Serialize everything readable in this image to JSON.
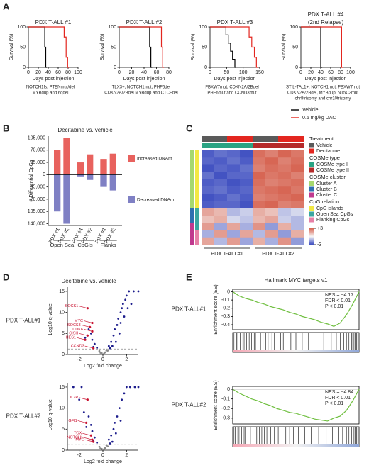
{
  "panel_labels": [
    "A",
    "B",
    "C",
    "D",
    "E"
  ],
  "chart_data": [
    {
      "type": "line",
      "title": "PDX T-ALL #1",
      "xlabel": "Days post injection",
      "ylabel": "Survival (%)",
      "xlim": [
        0,
        100
      ],
      "xticks": [
        0,
        20,
        40,
        60,
        80,
        100
      ],
      "ylim": [
        0,
        100
      ],
      "yticks": [
        0,
        50,
        100
      ],
      "series": [
        {
          "color": "#000000",
          "x": [
            0,
            33,
            33,
            35,
            35,
            37
          ],
          "y": [
            100,
            100,
            50,
            50,
            0,
            0
          ]
        },
        {
          "color": "#e3261f",
          "x": [
            0,
            72,
            72,
            76,
            76,
            79,
            79,
            82
          ],
          "y": [
            100,
            100,
            75,
            75,
            25,
            25,
            0,
            0
          ]
        }
      ],
      "annotation": [
        "NOTCH1fs, PTENmut/del",
        "MYBdup and 6qdel"
      ]
    },
    {
      "type": "line",
      "title": "PDX T-ALL #2",
      "xlabel": "Days post injection",
      "ylabel": "Survival (%)",
      "xlim": [
        0,
        80
      ],
      "xticks": [
        0,
        20,
        40,
        60,
        80
      ],
      "ylim": [
        0,
        100
      ],
      "yticks": [
        0,
        50,
        100
      ],
      "series": [
        {
          "color": "#000000",
          "x": [
            0,
            49,
            49,
            51,
            51,
            53
          ],
          "y": [
            100,
            100,
            50,
            50,
            0,
            0
          ]
        },
        {
          "color": "#e3261f",
          "x": [
            0,
            68,
            68,
            70,
            70,
            72
          ],
          "y": [
            100,
            100,
            50,
            50,
            0,
            0
          ]
        }
      ],
      "annotation": [
        "TLX3+, NOTCH1mut, PHF6del",
        "CDKN2A/2Bdel MYBdup and CTCFdel"
      ]
    },
    {
      "type": "line",
      "title": "PDX T-ALL #3",
      "xlabel": "Days post injection",
      "ylabel": "Survival (%)",
      "xlim": [
        0,
        150
      ],
      "xticks": [
        0,
        50,
        100,
        150
      ],
      "ylim": [
        0,
        100
      ],
      "yticks": [
        0,
        50,
        100
      ],
      "series": [
        {
          "color": "#000000",
          "x": [
            0,
            48,
            48,
            55,
            55,
            62,
            62,
            68,
            68,
            75,
            75,
            78
          ],
          "y": [
            100,
            100,
            80,
            80,
            60,
            60,
            40,
            40,
            20,
            20,
            0,
            0
          ]
        },
        {
          "color": "#e3261f",
          "x": [
            0,
            118,
            118,
            126,
            126,
            134,
            134,
            140,
            140,
            145
          ],
          "y": [
            100,
            100,
            75,
            75,
            50,
            50,
            25,
            25,
            0,
            0
          ]
        }
      ],
      "annotation": [
        "FBXW7mut, CDKN2A/2Bdel",
        "PHF6mut and CCND3mut"
      ]
    },
    {
      "type": "line",
      "title": "PDX T-ALL #4",
      "subtitle": "(2nd Relapse)",
      "xlabel": "Days post injection",
      "ylabel": "Survival (%)",
      "xlim": [
        0,
        100
      ],
      "xticks": [
        0,
        20,
        40,
        60,
        80,
        100
      ],
      "ylim": [
        0,
        100
      ],
      "yticks": [
        0,
        50,
        100
      ],
      "series": [
        {
          "name": "Vehicle",
          "color": "#000000",
          "x": [
            0,
            40,
            40,
            43
          ],
          "y": [
            100,
            100,
            0,
            0
          ]
        },
        {
          "name": "0.5 mg/kg DAC",
          "color": "#e3261f",
          "x": [
            0,
            82,
            82,
            85
          ],
          "y": [
            100,
            100,
            0,
            0
          ]
        }
      ],
      "annotation": [
        "STIL-TAL1+, NOTCH1mut, FBXW7mut",
        "CDKN2A/2Bdel, MYBdup, NT5C2mut",
        "chr8trisomy and chr10trisomy"
      ],
      "legend": "lower right"
    },
    {
      "type": "bar",
      "title": "Decitabine vs. vehicle",
      "ylabel": "# Differential CpGs",
      "categories": [
        "PDX #1",
        "PDX #2",
        "PDX #1",
        "PDX #2",
        "PDX #1",
        "PDX #2"
      ],
      "groups": [
        "Open Sea",
        "CpGIs",
        "Flanks"
      ],
      "series": [
        {
          "name": "Increased DNAm",
          "color": "#e8625e",
          "values": [
            70000,
            105000,
            35000,
            58000,
            45000,
            60000
          ]
        },
        {
          "name": "Decreased DNAm",
          "color": "#7f80c4",
          "values": [
            -105000,
            -140000,
            -5000,
            -15000,
            -35000,
            -45000
          ]
        }
      ],
      "ylim": [
        -145000,
        110000
      ],
      "yticks": [
        {
          "value": 105000,
          "label": "105,000"
        },
        {
          "value": 70000,
          "label": "70,000"
        },
        {
          "value": 35000,
          "label": "35,000"
        },
        0,
        {
          "value": -35000,
          "label": "35,000"
        },
        {
          "value": -70000,
          "label": "70,000"
        },
        {
          "value": -105000,
          "label": "105,000"
        },
        {
          "value": -140000,
          "label": "140,000"
        }
      ]
    },
    {
      "type": "heatmap",
      "xlabels": [
        "PDX T-ALL#1",
        "PDX T-ALL#2"
      ],
      "zlim": [
        -3,
        3
      ],
      "zticks": [
        {
          "value": 3,
          "label": "+3"
        },
        -3
      ],
      "col_annotations": [
        {
          "title": "Treatment",
          "items": [
            {
              "name": "Vehicle",
              "color": "#5a5a5a"
            },
            {
              "name": "Decitabine",
              "color": "#e3261f"
            }
          ],
          "values": [
            0,
            0,
            1,
            1,
            0,
            0,
            1,
            1
          ]
        },
        {
          "title": "COSMe type",
          "items": [
            {
              "name": "COSMe type I",
              "color": "#2aa383"
            },
            {
              "name": "COSMe type II",
              "color": "#b52a2a"
            }
          ],
          "values": [
            0,
            0,
            0,
            0,
            1,
            1,
            1,
            1
          ]
        }
      ],
      "row_annotations": [
        {
          "title": "COSMe cluster",
          "items": [
            {
              "name": "Cluster A",
              "color": "#a6d86e"
            },
            {
              "name": "Cluster B",
              "color": "#2f6fb0"
            },
            {
              "name": "Cluster C",
              "color": "#c0398e"
            }
          ],
          "values": [
            0,
            0,
            0,
            0,
            0,
            0,
            0,
            0,
            1,
            1,
            2,
            2,
            2
          ]
        },
        {
          "title": "CpG relation",
          "items": [
            {
              "name": "CpG islands",
              "color": "#f2e842"
            },
            {
              "name": "Open Sea CpGs",
              "color": "#3aa6a0"
            },
            {
              "name": "Flanking CpGs",
              "color": "#e67fa6"
            }
          ],
          "values": [
            0,
            0,
            0,
            0,
            0,
            0,
            0,
            0,
            1,
            1,
            1,
            2,
            2
          ]
        }
      ],
      "matrix": [
        [
          -1.5,
          -1.3,
          -1.4,
          -1.6,
          1.5,
          1.3,
          1.6,
          1.4
        ],
        [
          -1.4,
          -1.5,
          -1.3,
          -1.5,
          1.4,
          1.6,
          1.3,
          1.5
        ],
        [
          -1.6,
          -1.4,
          -1.5,
          -1.3,
          1.3,
          1.5,
          1.4,
          1.6
        ],
        [
          -1.3,
          -1.6,
          -1.4,
          -1.4,
          1.6,
          1.4,
          1.5,
          1.3
        ],
        [
          -1.5,
          -1.4,
          -1.6,
          -1.5,
          1.5,
          1.3,
          1.4,
          1.5
        ],
        [
          -1.4,
          -1.3,
          -1.5,
          -1.4,
          1.4,
          1.5,
          1.6,
          1.4
        ],
        [
          -1.6,
          -1.5,
          -1.3,
          -1.5,
          1.3,
          1.4,
          1.5,
          1.6
        ],
        [
          -1.5,
          -1.4,
          -1.4,
          -1.6,
          1.5,
          1.6,
          1.3,
          1.4
        ],
        [
          0.9,
          0.7,
          -0.6,
          -0.4,
          0.8,
          0.6,
          -0.5,
          -0.3
        ],
        [
          0.6,
          0.8,
          -0.3,
          -0.5,
          0.7,
          0.9,
          -0.4,
          -0.6
        ],
        [
          1.0,
          -0.8,
          0.9,
          -0.7,
          1.1,
          -0.9,
          0.8,
          -0.6
        ],
        [
          -0.7,
          1.0,
          -0.8,
          0.9,
          -0.6,
          1.0,
          -0.9,
          0.8
        ],
        [
          0.9,
          -0.6,
          1.0,
          -0.8,
          0.8,
          -0.7,
          1.1,
          -0.9
        ]
      ]
    },
    {
      "type": "scatter",
      "title": "Decitabine vs. vehicle",
      "row_label": "PDX T-ALL#1",
      "xlabel": "Log2 fold change",
      "ylabel": "−Log10 q-value",
      "xlim": [
        -3,
        3
      ],
      "xticks": [
        -2,
        0,
        2
      ],
      "ylim": [
        0,
        16
      ],
      "yticks": [
        0,
        5,
        10,
        15
      ],
      "hline": 1.3,
      "color": "#1c1c8c",
      "x": [
        0.3,
        0.5,
        0.7,
        0.9,
        1.0,
        1.2,
        1.3,
        1.5,
        1.6,
        1.7,
        1.9,
        2.0,
        2.2,
        2.6,
        3.0,
        1.1,
        1.4,
        0.8,
        1.8,
        2.1,
        0.6,
        0.2,
        -0.2,
        0.1,
        -0.1,
        -0.5,
        -0.7,
        -0.9,
        -1.0,
        -1.2,
        -0.8,
        -1.5,
        2.4,
        1.5,
        -0.3,
        0.4
      ],
      "y": [
        1.0,
        2.0,
        3.0,
        4.5,
        6.0,
        7.0,
        8.5,
        10.0,
        11.0,
        12.0,
        13.0,
        14.0,
        15.0,
        15.0,
        15.0,
        3.0,
        5.0,
        2.0,
        9.0,
        11.0,
        1.5,
        0.5,
        0.4,
        0.2,
        0.3,
        1.6,
        2.5,
        3.5,
        5.0,
        6.0,
        1.8,
        4.0,
        12.0,
        7.5,
        0.8,
        0.9
      ],
      "highlights": {
        "names": [
          "SOCS1",
          "MYC",
          "SOCS3",
          "CDK6",
          "CISH",
          "HES1",
          "CCND3"
        ],
        "x": [
          -1.3,
          -0.9,
          -1.1,
          -0.9,
          -1.3,
          -1.5,
          -0.8
        ],
        "y": [
          11.0,
          7.5,
          6.5,
          5.5,
          4.5,
          3.5,
          1.5
        ]
      }
    },
    {
      "type": "scatter",
      "row_label": "PDX T-ALL#2",
      "xlabel": "Log2 fold change",
      "ylabel": "−Log10 q-value",
      "xlim": [
        -3,
        3
      ],
      "xticks": [
        -2,
        0,
        2
      ],
      "ylim": [
        0,
        16
      ],
      "yticks": [
        0,
        5,
        10,
        15
      ],
      "hline": 1.3,
      "color": "#1c1c8c",
      "x": [
        0.3,
        0.5,
        0.7,
        0.9,
        1.0,
        1.2,
        1.4,
        1.6,
        1.8,
        2.0,
        2.3,
        2.7,
        3.0,
        1.1,
        0.8,
        0.6,
        0.2,
        -0.2,
        0.1,
        -0.1,
        -0.5,
        -0.7,
        -0.9,
        -1.0,
        -1.2,
        -1.6,
        -2.0,
        -1.8,
        -2.5,
        -0.8,
        -1.4,
        1.5,
        -0.3,
        0.4
      ],
      "y": [
        1.2,
        2.5,
        3.5,
        5.0,
        6.5,
        8.0,
        10.0,
        12.0,
        13.5,
        15.0,
        15.0,
        15.0,
        15.0,
        4.0,
        2.0,
        1.6,
        0.5,
        0.4,
        0.2,
        0.3,
        1.8,
        3.0,
        4.5,
        6.0,
        8.0,
        9.0,
        12.0,
        15.0,
        15.0,
        2.2,
        5.5,
        7.0,
        0.8,
        0.9
      ],
      "highlights": {
        "names": [
          "IL7R",
          "GFI1",
          "TOX",
          "NOTCH1",
          "MYC"
        ],
        "x": [
          -1.3,
          -1.4,
          -1.0,
          -0.9,
          -0.8
        ],
        "y": [
          12.0,
          6.5,
          3.5,
          2.5,
          2.0
        ]
      }
    },
    {
      "type": "line",
      "title": "Hallmark MYC targets v1",
      "row_label": "PDX T-ALL#1",
      "ylabel": "Enrichment score (ES)",
      "xlim": [
        0,
        100
      ],
      "ylim": [
        -0.46,
        0.03
      ],
      "yticks": [
        0,
        -0.1,
        -0.2,
        -0.3,
        -0.4
      ],
      "series": [
        {
          "color": "#6fbf3f",
          "x": [
            0,
            5,
            10,
            15,
            20,
            25,
            30,
            35,
            40,
            45,
            50,
            55,
            60,
            65,
            70,
            75,
            80,
            85,
            90,
            95,
            100
          ],
          "y": [
            0,
            -0.05,
            -0.08,
            -0.1,
            -0.13,
            -0.15,
            -0.18,
            -0.2,
            -0.22,
            -0.25,
            -0.27,
            -0.3,
            -0.32,
            -0.34,
            -0.37,
            -0.39,
            -0.42,
            -0.38,
            -0.28,
            -0.15,
            0
          ]
        }
      ],
      "annotation": [
        "NES = −4.17",
        "FDR < 0.01",
        "P < 0.01"
      ],
      "hits": [
        1,
        3,
        4,
        6,
        8,
        9,
        11,
        13,
        15,
        17,
        18,
        20,
        22,
        24,
        26,
        28,
        31,
        33,
        35,
        38,
        40,
        43,
        46,
        50,
        55,
        60,
        66,
        72,
        78,
        82,
        85,
        88,
        90,
        92,
        94,
        95,
        96,
        97,
        98,
        99
      ]
    },
    {
      "type": "line",
      "row_label": "PDX T-ALL#2",
      "ylabel": "Enrichment score (ES)",
      "xlim": [
        0,
        100
      ],
      "ylim": [
        -0.36,
        0.03
      ],
      "yticks": [
        0,
        -0.1,
        -0.2,
        -0.3
      ],
      "series": [
        {
          "color": "#6fbf3f",
          "x": [
            0,
            5,
            10,
            15,
            20,
            25,
            30,
            35,
            40,
            45,
            50,
            55,
            60,
            65,
            70,
            75,
            80,
            85,
            90,
            95,
            100
          ],
          "y": [
            0,
            -0.04,
            -0.07,
            -0.1,
            -0.12,
            -0.15,
            -0.17,
            -0.2,
            -0.22,
            -0.24,
            -0.25,
            -0.27,
            -0.29,
            -0.31,
            -0.32,
            -0.33,
            -0.3,
            -0.28,
            -0.22,
            -0.12,
            0
          ]
        }
      ],
      "annotation": [
        "NES = −4.84",
        "FDR < 0.01",
        "P < 0.01"
      ],
      "hits": [
        1,
        2,
        4,
        5,
        7,
        9,
        10,
        12,
        14,
        16,
        19,
        21,
        23,
        25,
        27,
        30,
        33,
        36,
        39,
        42,
        45,
        48,
        52,
        57,
        62,
        68,
        74,
        79,
        84,
        87,
        90,
        92,
        94,
        96,
        97,
        98,
        99
      ]
    }
  ]
}
